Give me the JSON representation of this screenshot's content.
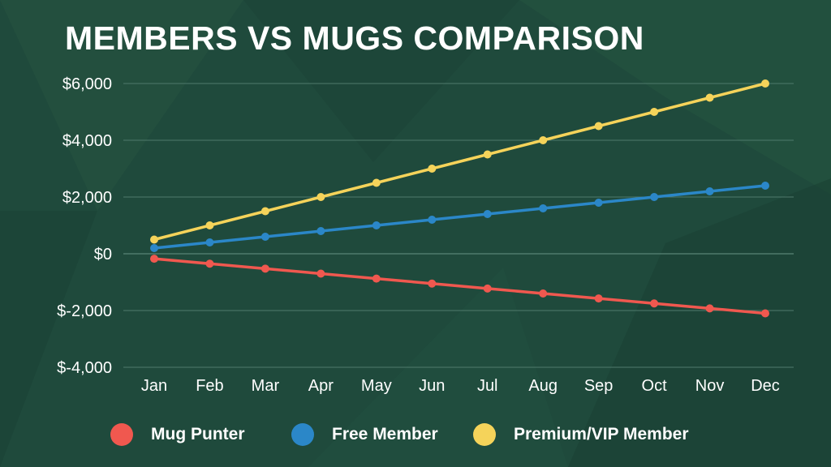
{
  "colors": {
    "background": "#1f4a3c",
    "grid": "#4f7a6c",
    "mug_punter": "#f0584f",
    "free_member": "#2b87c8",
    "premium_member": "#f5d35a"
  },
  "chart_data": {
    "type": "line",
    "title": "MEMBERS VS MUGS COMPARISON",
    "xlabel": "",
    "ylabel": "",
    "categories": [
      "Jan",
      "Feb",
      "Mar",
      "Apr",
      "May",
      "Jun",
      "Jul",
      "Aug",
      "Sep",
      "Oct",
      "Nov",
      "Dec"
    ],
    "ylim": [
      -4000,
      6000
    ],
    "yticks": [
      6000,
      4000,
      2000,
      0,
      -2000,
      -4000
    ],
    "ytick_labels": [
      "$6,000",
      "$4,000",
      "$2,000",
      "$0",
      "$-2,000",
      "$-4,000"
    ],
    "grid": true,
    "legend_position": "bottom",
    "series": [
      {
        "name": "Mug Punter",
        "color": "#f0584f",
        "values": [
          -175,
          -350,
          -525,
          -700,
          -875,
          -1050,
          -1225,
          -1400,
          -1575,
          -1750,
          -1925,
          -2100
        ]
      },
      {
        "name": "Free Member",
        "color": "#2b87c8",
        "values": [
          200,
          400,
          600,
          800,
          1000,
          1200,
          1400,
          1600,
          1800,
          2000,
          2200,
          2400
        ]
      },
      {
        "name": "Premium/VIP Member",
        "color": "#f5d35a",
        "values": [
          500,
          1000,
          1500,
          2000,
          2500,
          3000,
          3500,
          4000,
          4500,
          5000,
          5500,
          6000
        ]
      }
    ]
  }
}
